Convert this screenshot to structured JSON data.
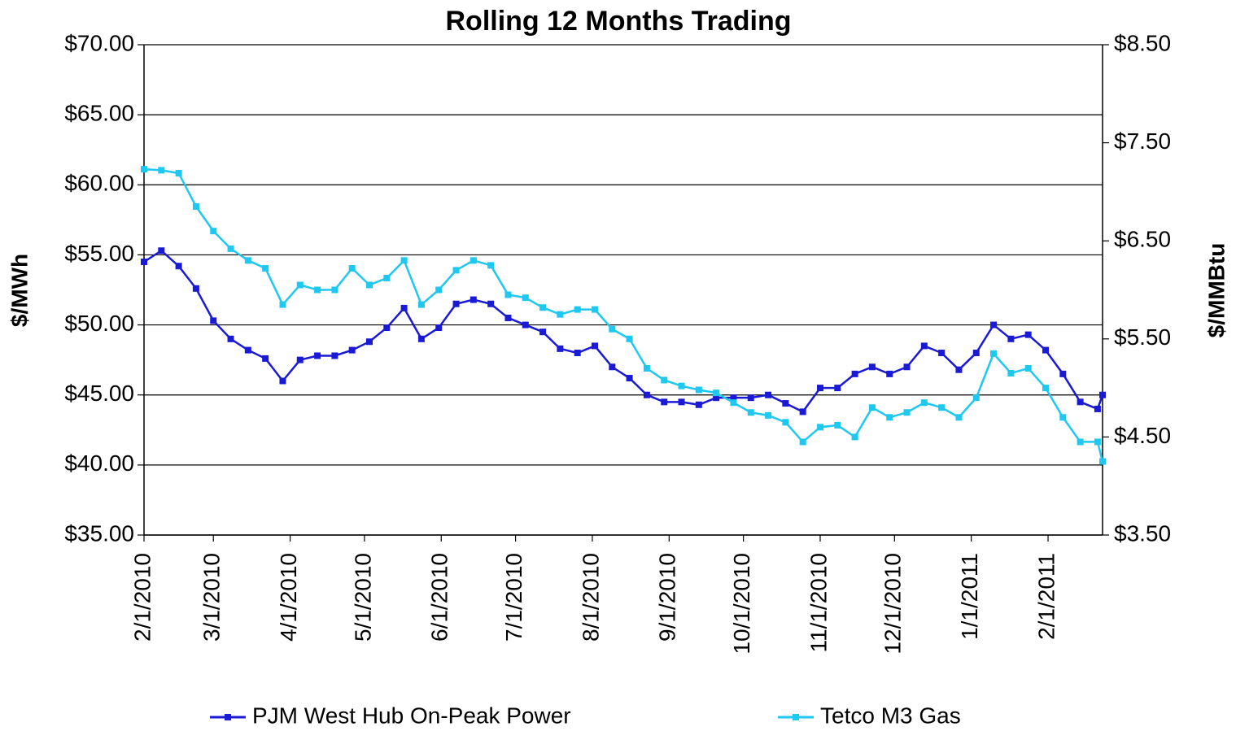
{
  "chart_data": {
    "type": "line",
    "title": "Rolling 12 Months Trading",
    "ylabel": "$/MWh",
    "y2label": "$/MMBtu",
    "x": [
      "2/1/2010",
      "2/8/2010",
      "2/15/2010",
      "2/22/2010",
      "3/1/2010",
      "3/8/2010",
      "3/15/2010",
      "3/22/2010",
      "3/29/2010",
      "4/5/2010",
      "4/12/2010",
      "4/19/2010",
      "4/26/2010",
      "5/3/2010",
      "5/10/2010",
      "5/17/2010",
      "5/24/2010",
      "5/31/2010",
      "6/7/2010",
      "6/14/2010",
      "6/21/2010",
      "6/28/2010",
      "7/5/2010",
      "7/12/2010",
      "7/19/2010",
      "7/26/2010",
      "8/2/2010",
      "8/9/2010",
      "8/16/2010",
      "8/23/2010",
      "8/30/2010",
      "9/6/2010",
      "9/13/2010",
      "9/20/2010",
      "9/27/2010",
      "10/4/2010",
      "10/11/2010",
      "10/18/2010",
      "10/25/2010",
      "11/1/2010",
      "11/8/2010",
      "11/15/2010",
      "11/22/2010",
      "11/29/2010",
      "12/6/2010",
      "12/13/2010",
      "12/20/2010",
      "12/27/2010",
      "1/3/2011",
      "1/10/2011",
      "1/17/2011",
      "1/24/2011",
      "1/31/2011",
      "2/7/2011",
      "2/14/2011",
      "2/21/2011",
      "2/23/2011"
    ],
    "series": [
      {
        "name": "PJM West Hub On-Peak Power",
        "color": "#1a1ad6",
        "axis": "y",
        "values": [
          54.5,
          55.3,
          54.2,
          52.6,
          50.3,
          49.0,
          48.2,
          47.6,
          46.0,
          47.5,
          47.8,
          47.8,
          48.2,
          48.8,
          49.8,
          51.2,
          49.0,
          49.8,
          51.5,
          51.8,
          51.5,
          50.5,
          50.0,
          49.5,
          48.3,
          48.0,
          48.5,
          47.0,
          46.2,
          45.0,
          44.5,
          44.5,
          44.3,
          44.8,
          44.8,
          44.8,
          45.0,
          44.4,
          43.8,
          45.5,
          45.5,
          46.5,
          47.0,
          46.5,
          47.0,
          48.5,
          48.0,
          46.8,
          48.0,
          50.0,
          49.0,
          49.3,
          48.2,
          46.5,
          44.5,
          44.0,
          45.0
        ]
      },
      {
        "name": "Tetco M3 Gas",
        "color": "#1ec8f0",
        "axis": "y2",
        "values": [
          7.23,
          7.22,
          7.19,
          6.85,
          6.6,
          6.42,
          6.3,
          6.22,
          5.85,
          6.05,
          6.0,
          6.0,
          6.22,
          6.05,
          6.12,
          6.3,
          5.85,
          6.0,
          6.2,
          6.3,
          6.25,
          5.95,
          5.92,
          5.82,
          5.75,
          5.8,
          5.8,
          5.6,
          5.5,
          5.2,
          5.08,
          5.02,
          4.98,
          4.95,
          4.85,
          4.75,
          4.72,
          4.65,
          4.45,
          4.6,
          4.62,
          4.5,
          4.8,
          4.7,
          4.75,
          4.85,
          4.8,
          4.7,
          4.9,
          5.35,
          5.15,
          5.2,
          5.0,
          4.7,
          4.45,
          4.45,
          4.25
        ]
      }
    ],
    "xlim": [
      "2/1/2010",
      "2/23/2011"
    ],
    "xticks": [
      "2/1/2010",
      "3/1/2010",
      "4/1/2010",
      "5/1/2010",
      "6/1/2010",
      "7/1/2010",
      "8/1/2010",
      "9/1/2010",
      "10/1/2010",
      "11/1/2010",
      "12/1/2010",
      "1/1/2011",
      "2/1/2011"
    ],
    "ylim": [
      35,
      70
    ],
    "yticks": [
      {
        "value": 35,
        "label": "$35.00"
      },
      {
        "value": 40,
        "label": "$40.00"
      },
      {
        "value": 45,
        "label": "$45.00"
      },
      {
        "value": 50,
        "label": "$50.00"
      },
      {
        "value": 55,
        "label": "$55.00"
      },
      {
        "value": 60,
        "label": "$60.00"
      },
      {
        "value": 65,
        "label": "$65.00"
      },
      {
        "value": 70,
        "label": "$70.00"
      }
    ],
    "y2lim": [
      3.5,
      8.5
    ],
    "y2ticks": [
      {
        "value": 3.5,
        "label": "$3.50"
      },
      {
        "value": 4.5,
        "label": "$4.50"
      },
      {
        "value": 5.5,
        "label": "$5.50"
      },
      {
        "value": 6.5,
        "label": "$6.50"
      },
      {
        "value": 7.5,
        "label": "$7.50"
      },
      {
        "value": 8.5,
        "label": "$8.50"
      }
    ],
    "grid": true,
    "legend": "bottom"
  }
}
